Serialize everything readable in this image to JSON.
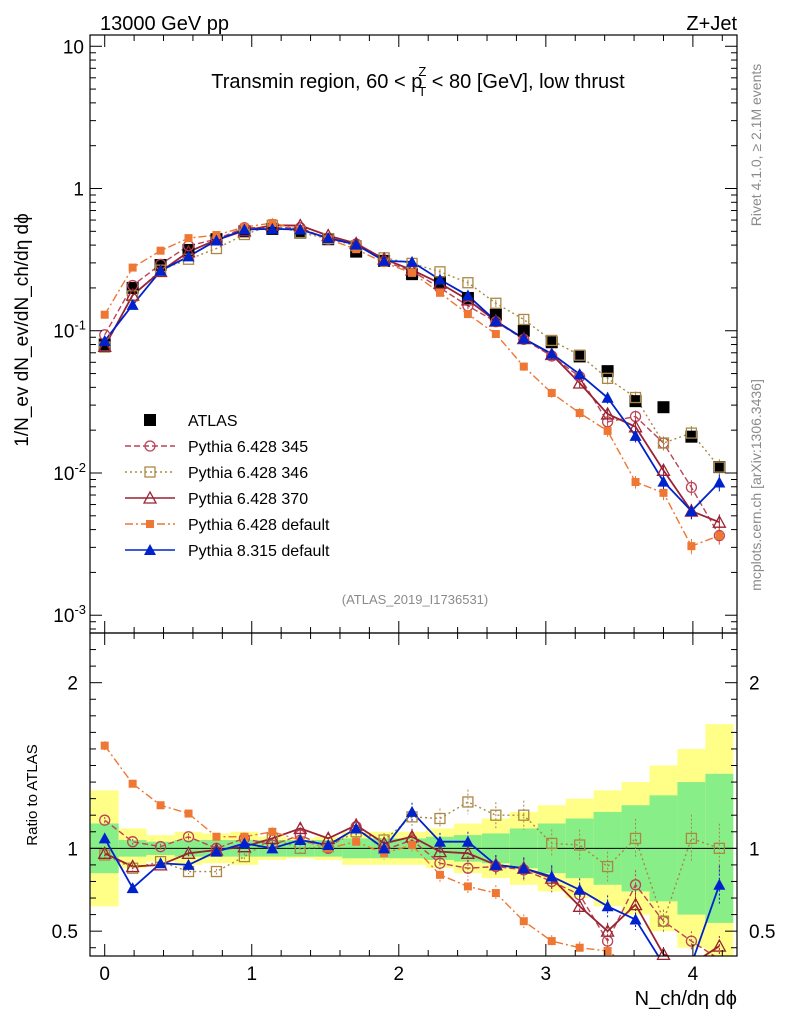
{
  "chart_data": {
    "type": "line",
    "header_left": "13000 GeV pp",
    "header_right": "Z+Jet",
    "title_pre": "Transmin region, 60 < p",
    "title_sup": "Z",
    "title_sub": "T",
    "title_post": " < 80 [GeV], low thrust",
    "ylabel_main": "1/N_ev dN_ev/dN_ch/dη dϕ",
    "ylabel_ratio": "Ratio to ATLAS",
    "xlabel": "N_ch/dη dϕ",
    "side_label_top": "Rivet 4.1.0, ≥ 2.1M events",
    "side_label_bottom": "mcplots.cern.ch [arXiv:1306.3436]",
    "analysis_id": "(ATLAS_2019_I1736531)",
    "x_range": [
      -0.1,
      4.3
    ],
    "y_range_main": [
      0.00075,
      12
    ],
    "y_range_ratio": [
      0.35,
      2.3
    ],
    "x_ticks": [
      "0",
      "1",
      "2",
      "3",
      "4"
    ],
    "y_ticks_main": [
      "10",
      "1",
      "10^-1",
      "10^-2",
      "10^-3"
    ],
    "y_ticks_ratio": [
      "2",
      "1",
      "0.5"
    ],
    "x": [
      0,
      0.19,
      0.38,
      0.57,
      0.76,
      0.95,
      1.14,
      1.33,
      1.52,
      1.71,
      1.9,
      2.09,
      2.28,
      2.47,
      2.66,
      2.85,
      3.04,
      3.23,
      3.42,
      3.61,
      3.8,
      3.99,
      4.18
    ],
    "atlas": {
      "name": "ATLAS",
      "values": [
        0.08,
        0.2,
        0.29,
        0.37,
        0.44,
        0.5,
        0.52,
        0.49,
        0.44,
        0.36,
        0.31,
        0.25,
        0.22,
        0.17,
        0.13,
        0.1,
        0.083,
        0.066,
        0.052,
        0.032,
        0.029,
        0.018,
        0.011
      ],
      "band_inner": [
        0.15,
        0.05,
        0.04,
        0.05,
        0.05,
        0.05,
        0.05,
        0.05,
        0.05,
        0.06,
        0.06,
        0.06,
        0.07,
        0.08,
        0.09,
        0.12,
        0.15,
        0.18,
        0.22,
        0.26,
        0.32,
        0.4,
        0.45
      ],
      "band_outer": [
        0.35,
        0.12,
        0.08,
        0.1,
        0.09,
        0.1,
        0.07,
        0.06,
        0.07,
        0.1,
        0.1,
        0.1,
        0.12,
        0.15,
        0.18,
        0.22,
        0.26,
        0.3,
        0.35,
        0.4,
        0.5,
        0.6,
        0.75
      ]
    },
    "series": [
      {
        "name": "Pythia 6.428 345",
        "color": "#bb4455",
        "marker": "open-circle",
        "dash": "6,3",
        "ratio": [
          1.17,
          1.04,
          1.01,
          1.07,
          1.0,
          1.06,
          1.02,
          1.08,
          1.0,
          1.13,
          0.99,
          1.05,
          0.91,
          0.88,
          0.89,
          0.87,
          0.8,
          0.72,
          0.44,
          0.78,
          0.56,
          0.44,
          0.33
        ]
      },
      {
        "name": "Pythia 6.428 346",
        "color": "#aa8844",
        "marker": "open-square",
        "dash": "2,3",
        "ratio": [
          0.96,
          0.88,
          0.92,
          0.86,
          0.86,
          0.95,
          1.06,
          1.0,
          1.01,
          1.1,
          1.05,
          1.19,
          1.18,
          1.28,
          1.2,
          1.2,
          1.03,
          1.02,
          0.89,
          1.06,
          0.56,
          1.06,
          1.0
        ]
      },
      {
        "name": "Pythia 6.428 370",
        "color": "#992233",
        "marker": "open-triangle",
        "dash": "",
        "ratio": [
          0.97,
          0.89,
          0.9,
          0.97,
          0.99,
          1.01,
          1.06,
          1.12,
          1.06,
          1.14,
          1.03,
          1.07,
          0.98,
          0.97,
          0.9,
          0.88,
          0.82,
          0.65,
          0.5,
          0.66,
          0.36,
          0.3,
          0.41
        ]
      },
      {
        "name": "Pythia 6.428 default",
        "color": "#ee7733",
        "marker": "filled-square",
        "dash": "8,3,2,3",
        "ratio": [
          1.62,
          1.39,
          1.26,
          1.21,
          1.07,
          1.07,
          1.1,
          1.05,
          1.0,
          1.04,
          0.97,
          1.02,
          0.84,
          0.77,
          0.73,
          0.56,
          0.44,
          0.4,
          0.38,
          0.27,
          0.25,
          0.17,
          0.33
        ]
      },
      {
        "name": "Pythia 8.315 default",
        "color": "#0022cc",
        "marker": "filled-triangle",
        "dash": "",
        "ratio": [
          1.06,
          0.76,
          0.91,
          0.9,
          0.98,
          1.03,
          1.0,
          1.05,
          1.02,
          1.12,
          1.0,
          1.22,
          1.04,
          1.04,
          0.9,
          0.88,
          0.83,
          0.75,
          0.65,
          0.57,
          0.3,
          0.3,
          0.78
        ]
      }
    ]
  }
}
